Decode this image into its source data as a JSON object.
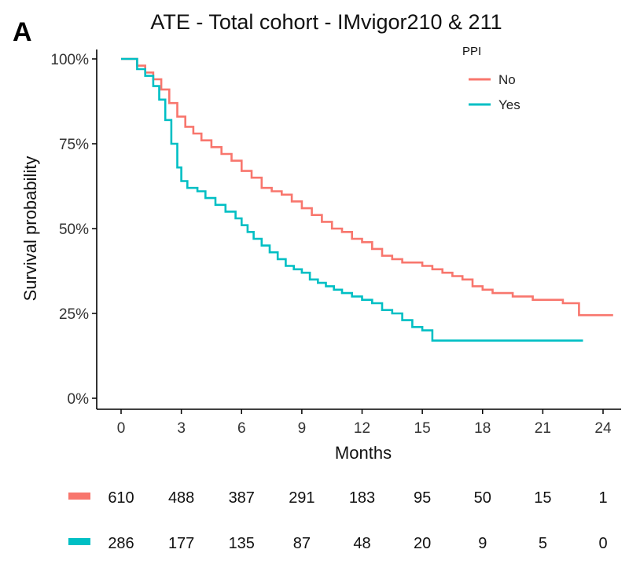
{
  "chart_data": {
    "type": "line",
    "panel_label": "A",
    "title": "ATE - Total cohort - IMvigor210 & 211",
    "xlabel": "Months",
    "ylabel": "Survival probability",
    "xlim": [
      0,
      24.5
    ],
    "ylim": [
      0,
      1
    ],
    "x_ticks": [
      0,
      3,
      6,
      9,
      12,
      15,
      18,
      21,
      24
    ],
    "x_tick_labels": [
      "0",
      "3",
      "6",
      "9",
      "12",
      "15",
      "18",
      "21",
      "24"
    ],
    "y_ticks": [
      0,
      0.25,
      0.5,
      0.75,
      1.0
    ],
    "y_tick_labels": [
      "0%",
      "25%",
      "50%",
      "75%",
      "100%"
    ],
    "legend": {
      "title": "PPI",
      "position": "top-right"
    },
    "series": [
      {
        "name": "No",
        "color": "#F8766D",
        "points": [
          [
            0,
            1.0
          ],
          [
            0.5,
            1.0
          ],
          [
            0.8,
            0.98
          ],
          [
            1.2,
            0.96
          ],
          [
            1.6,
            0.94
          ],
          [
            2.0,
            0.91
          ],
          [
            2.4,
            0.87
          ],
          [
            2.8,
            0.83
          ],
          [
            3.2,
            0.8
          ],
          [
            3.6,
            0.78
          ],
          [
            4.0,
            0.76
          ],
          [
            4.5,
            0.74
          ],
          [
            5.0,
            0.72
          ],
          [
            5.5,
            0.7
          ],
          [
            6.0,
            0.67
          ],
          [
            6.5,
            0.65
          ],
          [
            7.0,
            0.62
          ],
          [
            7.5,
            0.61
          ],
          [
            8.0,
            0.6
          ],
          [
            8.5,
            0.58
          ],
          [
            9.0,
            0.56
          ],
          [
            9.5,
            0.54
          ],
          [
            10.0,
            0.52
          ],
          [
            10.5,
            0.5
          ],
          [
            11.0,
            0.49
          ],
          [
            11.5,
            0.47
          ],
          [
            12.0,
            0.46
          ],
          [
            12.5,
            0.44
          ],
          [
            13.0,
            0.42
          ],
          [
            13.5,
            0.41
          ],
          [
            14.0,
            0.4
          ],
          [
            14.5,
            0.4
          ],
          [
            15.0,
            0.39
          ],
          [
            15.5,
            0.38
          ],
          [
            16.0,
            0.37
          ],
          [
            16.5,
            0.36
          ],
          [
            17.0,
            0.35
          ],
          [
            17.5,
            0.33
          ],
          [
            18.0,
            0.32
          ],
          [
            18.5,
            0.31
          ],
          [
            19.0,
            0.31
          ],
          [
            19.5,
            0.3
          ],
          [
            20.0,
            0.3
          ],
          [
            20.5,
            0.29
          ],
          [
            21.0,
            0.29
          ],
          [
            22.0,
            0.28
          ],
          [
            22.8,
            0.27
          ],
          [
            22.8,
            0.245
          ],
          [
            24.5,
            0.245
          ]
        ]
      },
      {
        "name": "Yes",
        "color": "#00BFC4",
        "points": [
          [
            0,
            1.0
          ],
          [
            0.4,
            1.0
          ],
          [
            0.8,
            0.97
          ],
          [
            1.2,
            0.95
          ],
          [
            1.6,
            0.92
          ],
          [
            1.9,
            0.88
          ],
          [
            2.2,
            0.82
          ],
          [
            2.5,
            0.75
          ],
          [
            2.8,
            0.68
          ],
          [
            3.0,
            0.64
          ],
          [
            3.3,
            0.62
          ],
          [
            3.8,
            0.61
          ],
          [
            4.2,
            0.59
          ],
          [
            4.7,
            0.57
          ],
          [
            5.2,
            0.55
          ],
          [
            5.7,
            0.53
          ],
          [
            6.0,
            0.51
          ],
          [
            6.3,
            0.49
          ],
          [
            6.6,
            0.47
          ],
          [
            7.0,
            0.45
          ],
          [
            7.4,
            0.43
          ],
          [
            7.8,
            0.41
          ],
          [
            8.2,
            0.39
          ],
          [
            8.6,
            0.38
          ],
          [
            9.0,
            0.37
          ],
          [
            9.4,
            0.35
          ],
          [
            9.8,
            0.34
          ],
          [
            10.2,
            0.33
          ],
          [
            10.6,
            0.32
          ],
          [
            11.0,
            0.31
          ],
          [
            11.5,
            0.3
          ],
          [
            12.0,
            0.29
          ],
          [
            12.5,
            0.28
          ],
          [
            13.0,
            0.26
          ],
          [
            13.5,
            0.25
          ],
          [
            14.0,
            0.23
          ],
          [
            14.5,
            0.21
          ],
          [
            15.0,
            0.2
          ],
          [
            15.5,
            0.19
          ],
          [
            15.5,
            0.17
          ],
          [
            23.0,
            0.17
          ]
        ]
      }
    ],
    "risk_table": {
      "times": [
        0,
        3,
        6,
        9,
        12,
        15,
        18,
        21,
        24
      ],
      "rows": [
        {
          "name": "No",
          "color": "#F8766D",
          "values": [
            "610",
            "488",
            "387",
            "291",
            "183",
            "95",
            "50",
            "15",
            "1"
          ]
        },
        {
          "name": "Yes",
          "color": "#00BFC4",
          "values": [
            "286",
            "177",
            "135",
            "87",
            "48",
            "20",
            "9",
            "5",
            "0"
          ]
        }
      ]
    }
  }
}
